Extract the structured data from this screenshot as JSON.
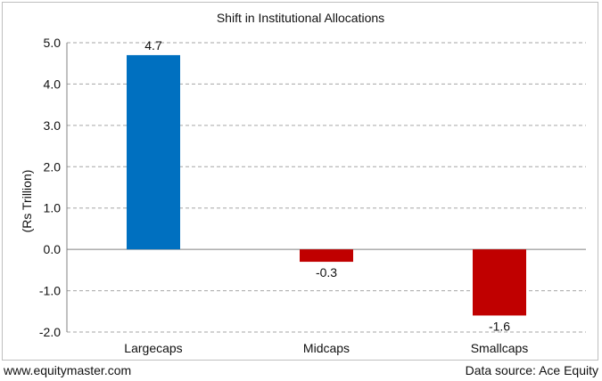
{
  "chart_data": {
    "type": "bar",
    "title": "Shift in Institutional Allocations",
    "ylabel": "(Rs Trillion)",
    "xlabel": "",
    "categories": [
      "Largecaps",
      "Midcaps",
      "Smallcaps"
    ],
    "values": [
      4.7,
      -0.3,
      -1.6
    ],
    "data_labels": [
      "4.7",
      "-0.3",
      "-1.6"
    ],
    "bar_colors": [
      "#0070c0",
      "#c00000",
      "#c00000"
    ],
    "ylim": [
      -2.0,
      5.0
    ],
    "yticks": [
      5.0,
      4.0,
      3.0,
      2.0,
      1.0,
      0.0,
      -1.0,
      -2.0
    ],
    "ytick_labels": [
      "5.0",
      "4.0",
      "3.0",
      "2.0",
      "1.0",
      "0.0",
      "-1.0",
      "-2.0"
    ],
    "grid": true,
    "legend": "none"
  },
  "footer": {
    "website": "www.equitymaster.com",
    "source": "Data source: Ace Equity"
  }
}
